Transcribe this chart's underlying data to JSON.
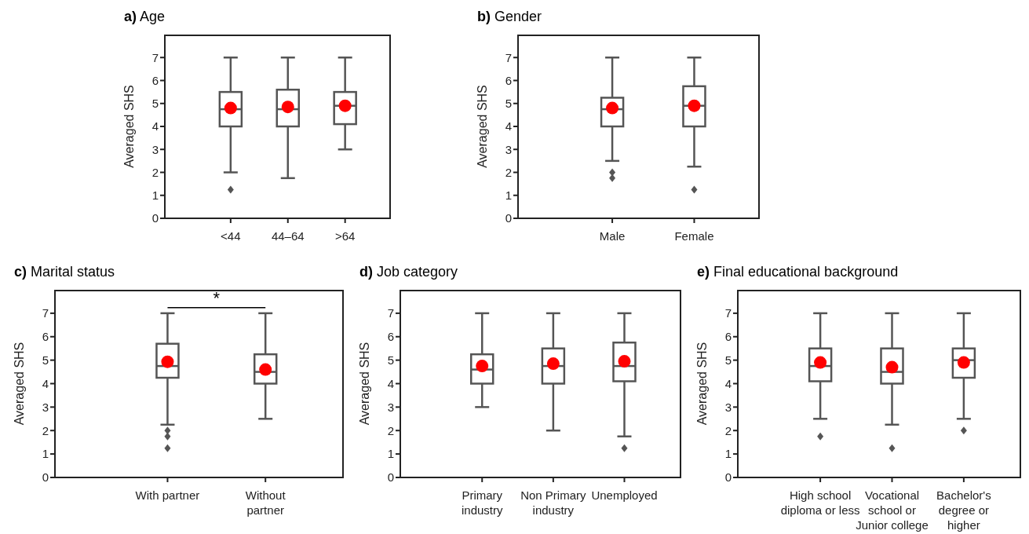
{
  "chart_data": [
    {
      "type": "box",
      "title": "a) Age",
      "ylabel": "Averaged SHS",
      "categories": [
        "<44",
        "44–64",
        ">64"
      ],
      "ylim": [
        0,
        8
      ],
      "yticks": [
        0,
        1,
        2,
        3,
        4,
        5,
        6,
        7
      ],
      "color": "#555555",
      "boxes": [
        {
          "low": 2,
          "q1": 4,
          "median": 4.75,
          "q3": 5.5,
          "high": 7,
          "mean": 4.8,
          "outliers": [
            1.25
          ]
        },
        {
          "low": 1.75,
          "q1": 4,
          "median": 4.75,
          "q3": 5.6,
          "high": 7,
          "mean": 4.85
        },
        {
          "low": 3,
          "q1": 4.1,
          "median": 4.9,
          "q3": 5.5,
          "high": 7,
          "mean": 4.9
        }
      ]
    },
    {
      "type": "box",
      "title": "b) Gender",
      "ylabel": "Averaged SHS",
      "categories": [
        "Male",
        "Female"
      ],
      "ylim": [
        0,
        8
      ],
      "yticks": [
        0,
        1,
        2,
        3,
        4,
        5,
        6,
        7
      ],
      "color": "#555555",
      "boxes": [
        {
          "low": 2.5,
          "q1": 4,
          "median": 4.75,
          "q3": 5.25,
          "high": 7,
          "mean": 4.8,
          "outliers": [
            2,
            1.75
          ]
        },
        {
          "low": 2.25,
          "q1": 4,
          "median": 4.9,
          "q3": 5.75,
          "high": 7,
          "mean": 4.9,
          "outliers": [
            1.25
          ]
        }
      ]
    },
    {
      "type": "box",
      "title": "c) Marital status",
      "ylabel": "Averaged SHS",
      "categories": [
        "With partner",
        "Without partner"
      ],
      "ylim": [
        0,
        8
      ],
      "yticks": [
        0,
        1,
        2,
        3,
        4,
        5,
        6,
        7
      ],
      "color": "#555555",
      "annotations": [
        "*"
      ],
      "boxes": [
        {
          "low": 2.25,
          "q1": 4.25,
          "median": 4.75,
          "q3": 5.7,
          "high": 7,
          "mean": 4.93,
          "outliers": [
            2,
            1.75,
            1.25
          ]
        },
        {
          "low": 2.5,
          "q1": 4,
          "median": 4.5,
          "q3": 5.25,
          "high": 7,
          "mean": 4.6
        }
      ]
    },
    {
      "type": "box",
      "title": "d) Job category",
      "ylabel": "Averaged SHS",
      "categories": [
        "Primary industry",
        "Non Primary industry",
        "Unemployed"
      ],
      "ylim": [
        0,
        8
      ],
      "yticks": [
        0,
        1,
        2,
        3,
        4,
        5,
        6,
        7
      ],
      "color": "#555555",
      "boxes": [
        {
          "low": 3,
          "q1": 4,
          "median": 4.6,
          "q3": 5.25,
          "high": 7,
          "mean": 4.75
        },
        {
          "low": 2,
          "q1": 4,
          "median": 4.75,
          "q3": 5.5,
          "high": 7,
          "mean": 4.85
        },
        {
          "low": 1.75,
          "q1": 4.1,
          "median": 4.75,
          "q3": 5.75,
          "high": 7,
          "mean": 4.95,
          "outliers": [
            1.25
          ]
        }
      ]
    },
    {
      "type": "box",
      "title": "e) Final educational background",
      "ylabel": "Averaged SHS",
      "categories": [
        "High school diploma or less",
        "Vocational school or Junior college",
        "Bachelor's degree or higher"
      ],
      "ylim": [
        0,
        8
      ],
      "yticks": [
        0,
        1,
        2,
        3,
        4,
        5,
        6,
        7
      ],
      "color": "#555555",
      "boxes": [
        {
          "low": 2.5,
          "q1": 4.1,
          "median": 4.75,
          "q3": 5.5,
          "high": 7,
          "mean": 4.9,
          "outliers": [
            1.75
          ]
        },
        {
          "low": 2.25,
          "q1": 4,
          "median": 4.5,
          "q3": 5.5,
          "high": 7,
          "mean": 4.7,
          "outliers": [
            1.25
          ]
        },
        {
          "low": 2.5,
          "q1": 4.25,
          "median": 5,
          "q3": 5.5,
          "high": 7,
          "mean": 4.9,
          "outliers": [
            2
          ]
        }
      ]
    }
  ]
}
